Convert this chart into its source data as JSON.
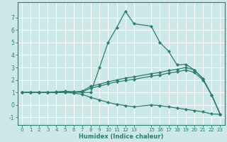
{
  "title": "",
  "xlabel": "Humidex (Indice chaleur)",
  "ylabel": "",
  "background_color": "#cce8e8",
  "grid_color": "#ffffff",
  "line_color": "#2e7d6e",
  "xlim": [
    -0.5,
    23.5
  ],
  "ylim": [
    -1.6,
    8.2
  ],
  "xticks": [
    0,
    1,
    2,
    3,
    4,
    5,
    6,
    7,
    8,
    9,
    10,
    11,
    12,
    13,
    15,
    16,
    17,
    18,
    19,
    20,
    21,
    22,
    23
  ],
  "yticks": [
    -1,
    0,
    1,
    2,
    3,
    4,
    5,
    6,
    7
  ],
  "lines": [
    {
      "x": [
        0,
        1,
        2,
        3,
        4,
        5,
        6,
        7,
        8,
        9,
        10,
        11,
        12,
        13,
        15,
        16,
        17,
        18,
        19,
        20,
        21,
        22,
        23
      ],
      "y": [
        1.0,
        1.0,
        1.0,
        1.0,
        1.05,
        1.1,
        1.05,
        1.0,
        1.0,
        3.0,
        5.0,
        6.2,
        7.5,
        6.5,
        6.3,
        5.0,
        4.3,
        3.2,
        3.25,
        2.8,
        2.1,
        0.8,
        -0.75
      ]
    },
    {
      "x": [
        0,
        1,
        2,
        3,
        4,
        5,
        6,
        7,
        8,
        9,
        10,
        11,
        12,
        13,
        15,
        16,
        17,
        18,
        19,
        20,
        21,
        22,
        23
      ],
      "y": [
        1.0,
        1.0,
        1.0,
        1.0,
        1.0,
        1.05,
        1.05,
        1.1,
        1.5,
        1.65,
        1.85,
        2.0,
        2.15,
        2.25,
        2.5,
        2.6,
        2.75,
        2.85,
        3.0,
        2.8,
        2.1,
        0.8,
        -0.75
      ]
    },
    {
      "x": [
        0,
        1,
        2,
        3,
        4,
        5,
        6,
        7,
        8,
        9,
        10,
        11,
        12,
        13,
        15,
        16,
        17,
        18,
        19,
        20,
        21,
        22,
        23
      ],
      "y": [
        1.0,
        1.0,
        1.0,
        1.0,
        1.0,
        1.0,
        1.0,
        1.05,
        1.35,
        1.5,
        1.7,
        1.85,
        1.95,
        2.05,
        2.3,
        2.4,
        2.55,
        2.65,
        2.8,
        2.6,
        2.0,
        0.8,
        -0.75
      ]
    },
    {
      "x": [
        0,
        1,
        2,
        3,
        4,
        5,
        6,
        7,
        8,
        9,
        10,
        11,
        12,
        13,
        15,
        16,
        17,
        18,
        19,
        20,
        21,
        22,
        23
      ],
      "y": [
        1.0,
        1.0,
        1.0,
        1.0,
        1.0,
        1.0,
        0.95,
        0.85,
        0.6,
        0.4,
        0.2,
        0.05,
        -0.05,
        -0.15,
        0.0,
        -0.05,
        -0.15,
        -0.25,
        -0.35,
        -0.45,
        -0.55,
        -0.72,
        -0.75
      ]
    }
  ],
  "marker": "D",
  "markersize": 2.2,
  "linewidth": 0.9
}
